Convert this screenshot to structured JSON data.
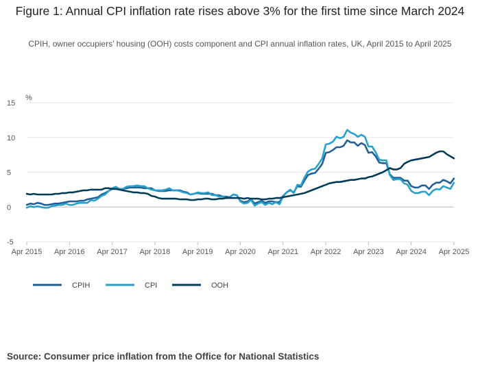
{
  "title": "Figure 1: Annual CPI inflation rate rises above 3% for the first time since March 2024",
  "subtitle": "CPIH, owner occupiers’ housing (OOH) costs component and CPI annual inflation rates, UK, April 2015 to April 2025",
  "source": {
    "label": "Source:",
    "text": "Consumer price inflation from the Office for National Statistics"
  },
  "colors": {
    "CPIH": "#206095",
    "CPI": "#27a0cc",
    "OOH": "#003c57",
    "grid": "#e6e6e6",
    "zero": "#bbbbbb"
  },
  "chart_data": {
    "type": "line",
    "ylabel": "%",
    "ylim": [
      -5,
      15
    ],
    "yticks": [
      -5,
      0,
      5,
      10,
      15
    ],
    "xticks": [
      "Apr 2015",
      "Apr 2016",
      "Apr 2017",
      "Apr 2018",
      "Apr 2019",
      "Apr 2020",
      "Apr 2021",
      "Apr 2022",
      "Apr 2023",
      "Apr 2024",
      "Apr 2025"
    ],
    "grid": true,
    "legend_position": "bottom-left",
    "x_start": "Apr 2015",
    "x_end": "Apr 2025",
    "frequency": "monthly",
    "series": [
      {
        "name": "CPIH",
        "values": [
          0.3,
          0.5,
          0.4,
          0.6,
          0.5,
          0.3,
          0.3,
          0.4,
          0.5,
          0.5,
          0.6,
          0.7,
          0.8,
          0.8,
          0.8,
          0.9,
          0.9,
          1.1,
          1.2,
          1.3,
          1.4,
          1.8,
          2.0,
          2.3,
          2.6,
          2.7,
          2.6,
          2.6,
          2.7,
          2.8,
          2.8,
          2.8,
          2.8,
          2.7,
          2.7,
          2.7,
          2.4,
          2.3,
          2.3,
          2.3,
          2.4,
          2.4,
          2.4,
          2.4,
          2.2,
          2.1,
          1.8,
          1.9,
          2.0,
          1.9,
          1.9,
          1.9,
          1.9,
          1.7,
          1.7,
          1.5,
          1.5,
          1.4,
          1.8,
          1.7,
          0.9,
          0.7,
          0.8,
          1.1,
          0.5,
          0.7,
          0.9,
          0.6,
          0.8,
          0.8,
          0.7,
          0.7,
          1.6,
          2.1,
          2.4,
          2.1,
          3.0,
          2.9,
          3.8,
          4.6,
          4.8,
          4.9,
          5.5,
          6.2,
          7.8,
          7.9,
          8.2,
          8.6,
          8.6,
          8.8,
          9.6,
          9.3,
          9.3,
          8.8,
          9.2,
          8.9,
          7.8,
          7.9,
          7.3,
          6.4,
          6.3,
          6.3,
          4.7,
          4.2,
          4.2,
          4.2,
          3.8,
          3.8,
          3.0,
          2.8,
          2.8,
          3.1,
          3.1,
          2.6,
          3.2,
          3.5,
          3.5,
          3.9,
          3.7,
          3.4,
          4.1
        ]
      },
      {
        "name": "CPI",
        "values": [
          -0.1,
          0.1,
          0.0,
          0.1,
          0.0,
          -0.1,
          -0.1,
          0.1,
          0.2,
          0.3,
          0.3,
          0.5,
          0.3,
          0.3,
          0.5,
          0.6,
          0.6,
          0.6,
          1.0,
          0.9,
          1.2,
          1.6,
          1.8,
          2.3,
          2.7,
          2.9,
          2.6,
          2.6,
          2.9,
          3.0,
          3.0,
          3.1,
          3.0,
          3.0,
          2.7,
          2.5,
          2.4,
          2.4,
          2.4,
          2.5,
          2.7,
          2.4,
          2.4,
          2.3,
          2.1,
          2.0,
          1.8,
          1.9,
          2.1,
          2.0,
          2.0,
          2.1,
          1.7,
          1.7,
          1.5,
          1.5,
          1.3,
          1.4,
          1.8,
          1.7,
          0.8,
          0.5,
          0.6,
          1.0,
          0.2,
          0.5,
          0.7,
          0.3,
          0.6,
          0.4,
          0.7,
          0.4,
          1.5,
          2.1,
          2.5,
          2.0,
          3.2,
          3.1,
          4.2,
          5.1,
          5.4,
          5.5,
          6.2,
          7.0,
          9.0,
          9.1,
          9.4,
          10.1,
          9.9,
          10.1,
          11.1,
          10.7,
          10.5,
          10.1,
          10.4,
          10.1,
          8.7,
          8.7,
          7.9,
          6.8,
          6.7,
          6.7,
          4.6,
          3.9,
          4.0,
          4.0,
          3.4,
          3.2,
          2.3,
          2.0,
          2.0,
          2.2,
          2.2,
          1.7,
          2.3,
          2.6,
          2.5,
          3.0,
          2.8,
          2.6,
          3.5
        ]
      },
      {
        "name": "OOH",
        "values": [
          1.9,
          1.8,
          1.9,
          1.8,
          1.8,
          1.8,
          1.8,
          1.8,
          1.9,
          1.9,
          2.0,
          2.0,
          2.1,
          2.1,
          2.2,
          2.3,
          2.4,
          2.4,
          2.5,
          2.5,
          2.5,
          2.5,
          2.7,
          2.7,
          2.6,
          2.6,
          2.5,
          2.4,
          2.3,
          2.2,
          2.1,
          2.1,
          2.0,
          2.0,
          1.9,
          1.6,
          1.5,
          1.3,
          1.2,
          1.2,
          1.2,
          1.2,
          1.2,
          1.1,
          1.1,
          1.1,
          1.0,
          1.0,
          1.1,
          1.1,
          1.2,
          1.2,
          1.1,
          1.1,
          1.2,
          1.2,
          1.3,
          1.3,
          1.3,
          1.3,
          1.3,
          1.2,
          1.3,
          1.2,
          1.2,
          1.2,
          1.1,
          1.1,
          1.2,
          1.2,
          1.3,
          1.3,
          1.4,
          1.5,
          1.6,
          1.7,
          1.8,
          1.9,
          2.0,
          2.2,
          2.4,
          2.6,
          2.8,
          3.0,
          3.2,
          3.4,
          3.5,
          3.6,
          3.6,
          3.7,
          3.8,
          3.9,
          3.9,
          4.0,
          4.1,
          4.1,
          4.3,
          4.4,
          4.6,
          4.8,
          5.0,
          5.3,
          5.6,
          5.4,
          5.4,
          5.6,
          6.2,
          6.5,
          6.7,
          6.8,
          6.9,
          7.0,
          7.1,
          7.2,
          7.5,
          7.8,
          8.0,
          8.0,
          7.6,
          7.3,
          7.0
        ]
      }
    ]
  }
}
